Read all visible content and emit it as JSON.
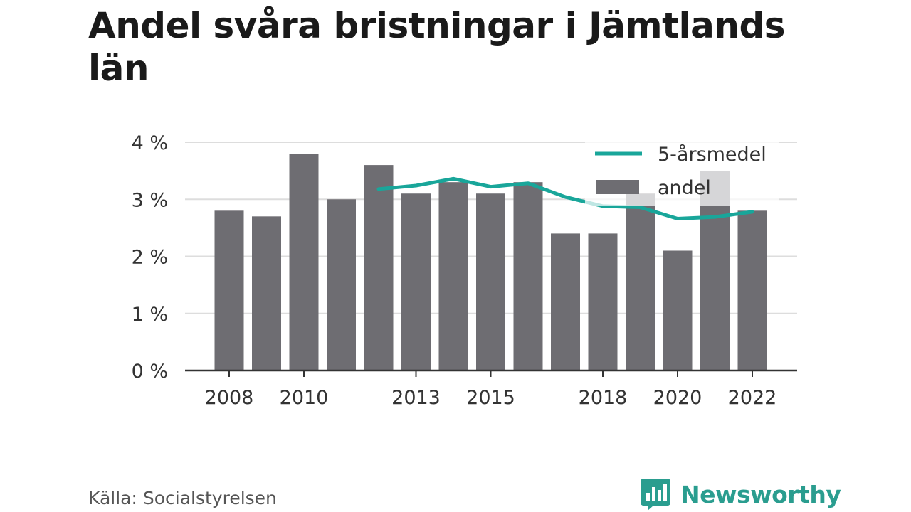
{
  "title": "Andel svåra bristningar i Jämtlands län",
  "source": "Källa: Socialstyrelsen",
  "brand": {
    "name": "Newsworthy",
    "icon": "bar-chart-speech-bubble-icon",
    "color": "#2a9d8f"
  },
  "colors": {
    "bar": "#6e6d72",
    "line": "#19a69a",
    "grid": "#dddddd",
    "axis": "#333333"
  },
  "chart_data": {
    "type": "bar",
    "x": [
      2008,
      2009,
      2010,
      2011,
      2012,
      2013,
      2014,
      2015,
      2016,
      2017,
      2018,
      2019,
      2020,
      2021,
      2022
    ],
    "x_tick_labels": [
      "2008",
      "2010",
      "2013",
      "2015",
      "2018",
      "2020",
      "2022"
    ],
    "y_tick_labels": [
      "0 %",
      "1 %",
      "2 %",
      "3 %",
      "4 %"
    ],
    "ylim": [
      0,
      4
    ],
    "grid": true,
    "legend_position": "top-right",
    "series": [
      {
        "name": "andel",
        "type": "bar",
        "values": [
          2.8,
          2.7,
          3.8,
          3.0,
          3.6,
          3.1,
          3.3,
          3.1,
          3.3,
          2.4,
          2.4,
          3.1,
          2.1,
          3.5,
          2.8
        ]
      },
      {
        "name": "5-årsmedel",
        "type": "line",
        "values": [
          null,
          null,
          null,
          null,
          3.18,
          3.24,
          3.36,
          3.22,
          3.28,
          3.04,
          2.88,
          2.86,
          2.66,
          2.69,
          2.78
        ]
      }
    ],
    "legend": [
      "5-årsmedel",
      "andel"
    ]
  }
}
